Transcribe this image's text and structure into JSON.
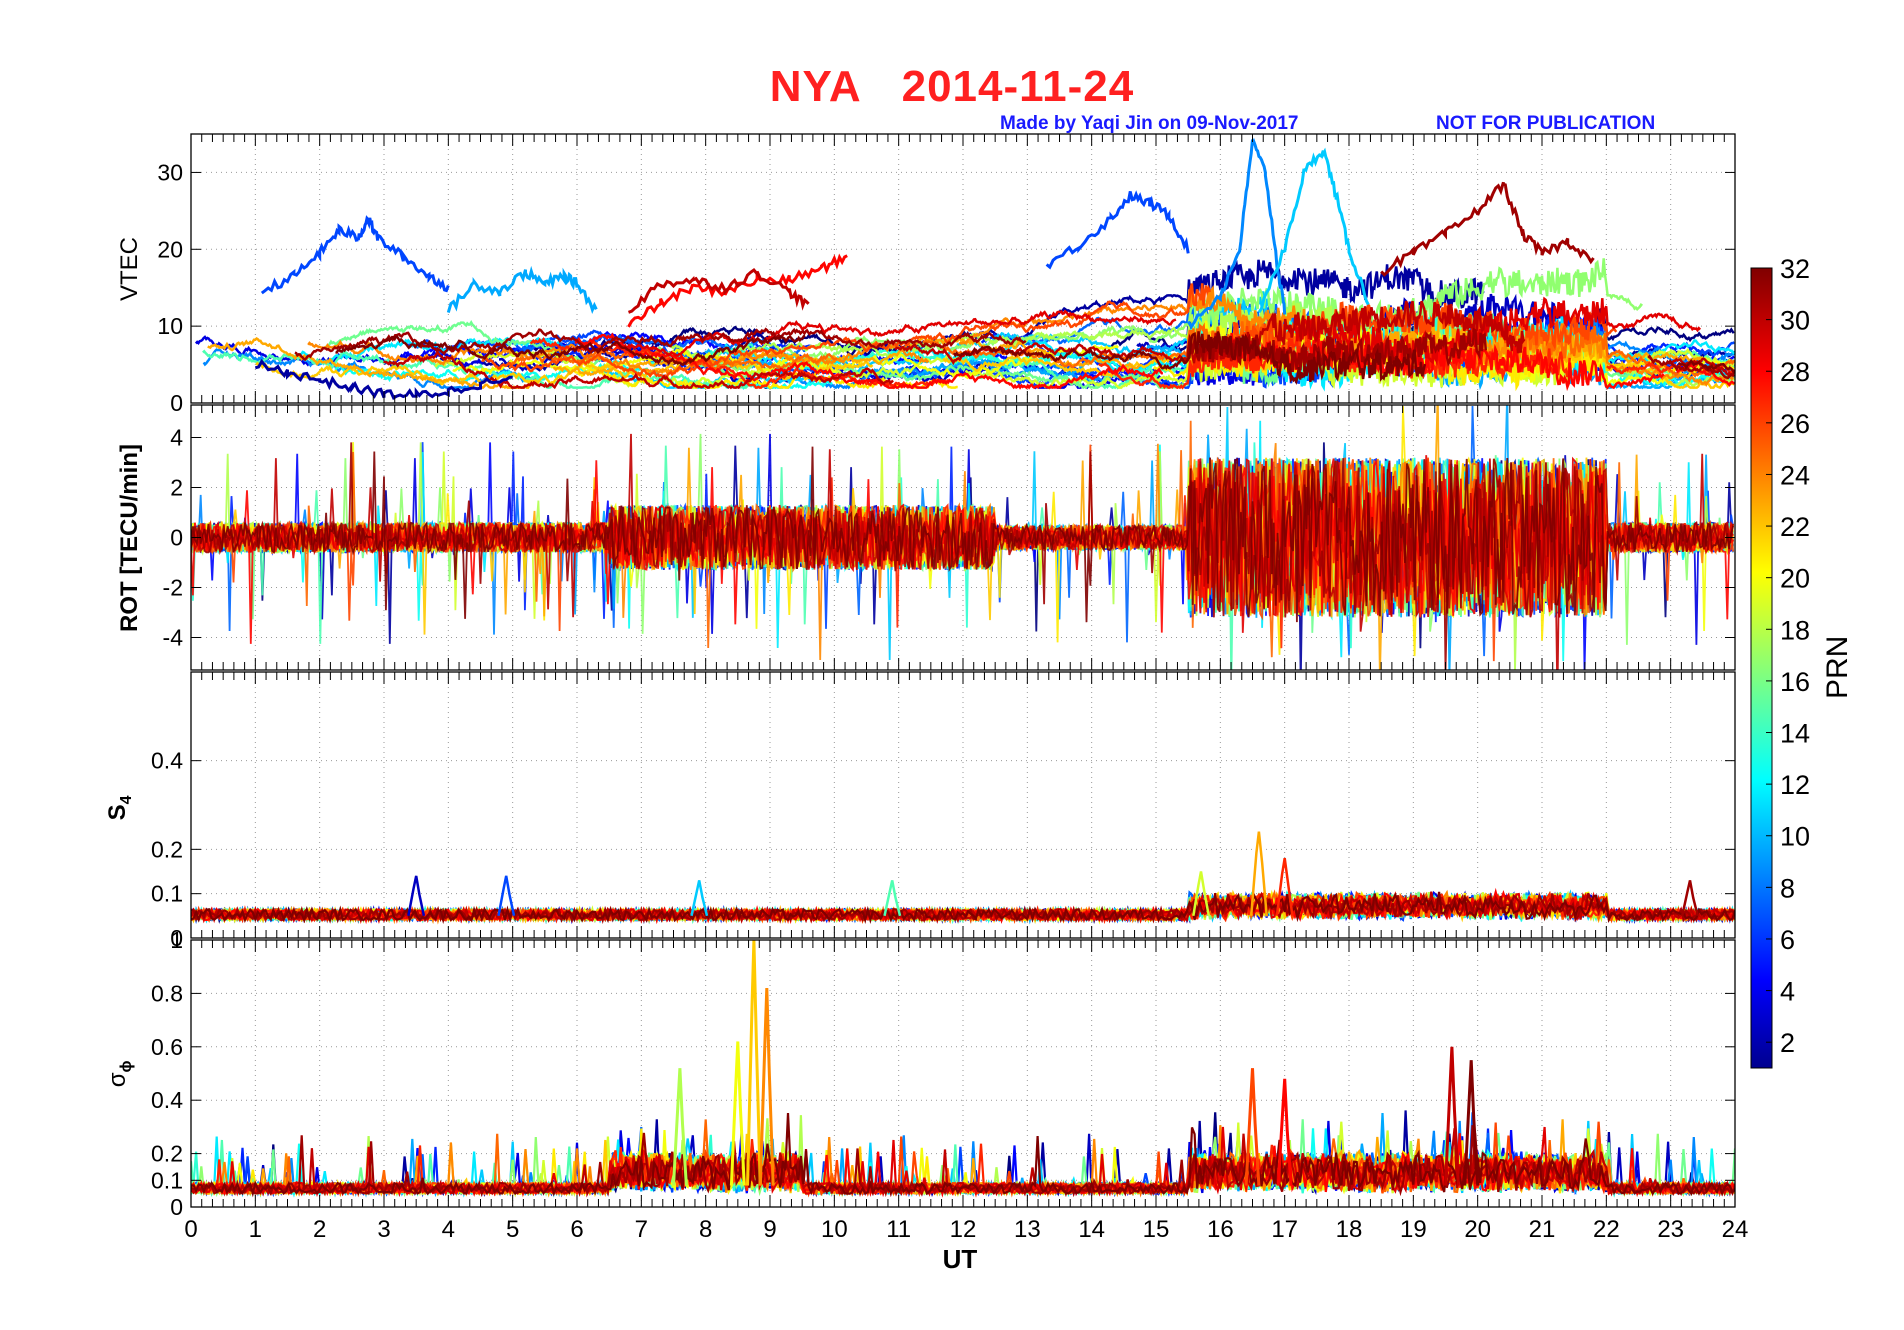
{
  "header": {
    "station": "NYA",
    "date": "2014-11-24",
    "credit": "Made by Yaqi Jin on 09-Nov-2017",
    "notice": "NOT FOR PUBLICATION"
  },
  "colors": {
    "title": "#ff2020",
    "credit": "#1a1aff"
  },
  "colorbar": {
    "label": "PRN",
    "ticks": [
      "2",
      "4",
      "6",
      "8",
      "10",
      "12",
      "14",
      "16",
      "18",
      "20",
      "22",
      "24",
      "26",
      "28",
      "30",
      "32"
    ],
    "range": [
      1,
      32
    ]
  },
  "chart_data": [
    {
      "type": "line",
      "panel": "VTEC",
      "ylabel": "VTEC",
      "xlabel": "",
      "xlim": [
        0,
        24
      ],
      "ylim": [
        0,
        35
      ],
      "yticks": [
        "0",
        "10",
        "20",
        "30"
      ],
      "series": [
        {
          "name": "PRN 7 (blue arc)",
          "prn": 7,
          "x": [
            1.1,
            1.6,
            2.0,
            2.3,
            2.6,
            2.75,
            2.9,
            3.3,
            3.7,
            4.0
          ],
          "y": [
            14.5,
            16.5,
            19.5,
            22.5,
            21.5,
            24,
            21.5,
            19,
            16.5,
            15
          ]
        },
        {
          "name": "PRN 10 (light blue arc)",
          "prn": 10,
          "x": [
            4.0,
            4.4,
            4.8,
            5.2,
            5.5,
            5.8,
            6.0,
            6.3
          ],
          "y": [
            12,
            15.5,
            14.5,
            17,
            15.5,
            16.5,
            15.5,
            12
          ]
        },
        {
          "name": "PRN 7 (blue arc 2)",
          "prn": 7,
          "x": [
            13.3,
            13.8,
            14.3,
            14.6,
            14.9,
            15.2,
            15.5
          ],
          "y": [
            18,
            20.5,
            24,
            27,
            26,
            24.5,
            20
          ]
        },
        {
          "name": "PRN 9 (blue peak)",
          "prn": 9,
          "x": [
            15.5,
            16.0,
            16.3,
            16.5,
            16.7,
            16.9,
            17.0
          ],
          "y": [
            10,
            14,
            20,
            34,
            30,
            17,
            12
          ]
        },
        {
          "name": "PRN 11 (light blue peak)",
          "prn": 11,
          "x": [
            16.6,
            17.0,
            17.3,
            17.6,
            17.8,
            18.0,
            18.3
          ],
          "y": [
            12,
            20,
            30,
            33,
            27,
            20,
            13
          ]
        },
        {
          "name": "PRN 31 (dark red)",
          "prn": 31,
          "x": [
            18.5,
            19.0,
            19.5,
            20.0,
            20.4,
            20.7,
            21.0,
            21.4,
            21.8
          ],
          "y": [
            17,
            19.5,
            22,
            25,
            28.5,
            22,
            19.5,
            21,
            18.5
          ]
        },
        {
          "name": "PRN 28 (red arc)",
          "prn": 28,
          "x": [
            6.8,
            7.3,
            7.8,
            8.3,
            8.8,
            9.3,
            9.8,
            10.2
          ],
          "y": [
            10,
            13,
            15,
            14.5,
            16,
            16,
            17.5,
            19
          ]
        },
        {
          "name": "PRN 30 (dark red arc)",
          "prn": 30,
          "x": [
            6.8,
            7.3,
            7.8,
            8.3,
            8.8,
            9.3,
            9.6
          ],
          "y": [
            12,
            15.5,
            16,
            15,
            17,
            14.5,
            12.5
          ]
        },
        {
          "name": "PRN 2 (dark blue)",
          "prn": 2,
          "x": [
            1.0,
            1.5,
            2.0,
            2.5,
            3.0,
            3.5,
            4.0,
            4.5,
            5.0
          ],
          "y": [
            5,
            4,
            3,
            2,
            1.2,
            1,
            1.5,
            2.5,
            3
          ]
        }
      ]
    },
    {
      "type": "line",
      "panel": "ROT",
      "ylabel": "ROT [TECU/min]",
      "xlabel": "",
      "xlim": [
        0,
        24
      ],
      "ylim": [
        -5.3,
        5.3
      ],
      "yticks": [
        "-4",
        "-2",
        "0",
        "2",
        "4"
      ]
    },
    {
      "type": "line",
      "panel": "S4",
      "ylabel": "S4",
      "xlabel": "",
      "xlim": [
        0,
        24
      ],
      "ylim": [
        0,
        0.6
      ],
      "yticks": [
        "0",
        "0.1",
        "0.2",
        "0.4"
      ],
      "peaks": [
        {
          "x": 3.5,
          "y": 0.14
        },
        {
          "x": 4.9,
          "y": 0.14
        },
        {
          "x": 7.9,
          "y": 0.13
        },
        {
          "x": 10.9,
          "y": 0.13
        },
        {
          "x": 15.7,
          "y": 0.15
        },
        {
          "x": 16.6,
          "y": 0.24
        },
        {
          "x": 17.0,
          "y": 0.18
        },
        {
          "x": 23.3,
          "y": 0.13
        }
      ]
    },
    {
      "type": "line",
      "panel": "sigma_phi",
      "ylabel": "σ",
      "ylabel_sub": "ϕ",
      "xlabel": "UT",
      "xlim": [
        0,
        24
      ],
      "ylim": [
        0,
        1
      ],
      "xticks": [
        "0",
        "1",
        "2",
        "3",
        "4",
        "5",
        "6",
        "7",
        "8",
        "9",
        "10",
        "11",
        "12",
        "13",
        "14",
        "15",
        "16",
        "17",
        "18",
        "19",
        "20",
        "21",
        "22",
        "23",
        "24"
      ],
      "yticks": [
        "0",
        "0.1",
        "0.2",
        "0.4",
        "0.6",
        "0.8",
        "1"
      ],
      "peaks": [
        {
          "x": 7.6,
          "y": 0.52
        },
        {
          "x": 8.5,
          "y": 0.62
        },
        {
          "x": 8.75,
          "y": 1.0
        },
        {
          "x": 8.95,
          "y": 0.82
        },
        {
          "x": 16.5,
          "y": 0.52
        },
        {
          "x": 17.0,
          "y": 0.48
        },
        {
          "x": 19.6,
          "y": 0.6
        },
        {
          "x": 19.9,
          "y": 0.55
        }
      ]
    }
  ]
}
